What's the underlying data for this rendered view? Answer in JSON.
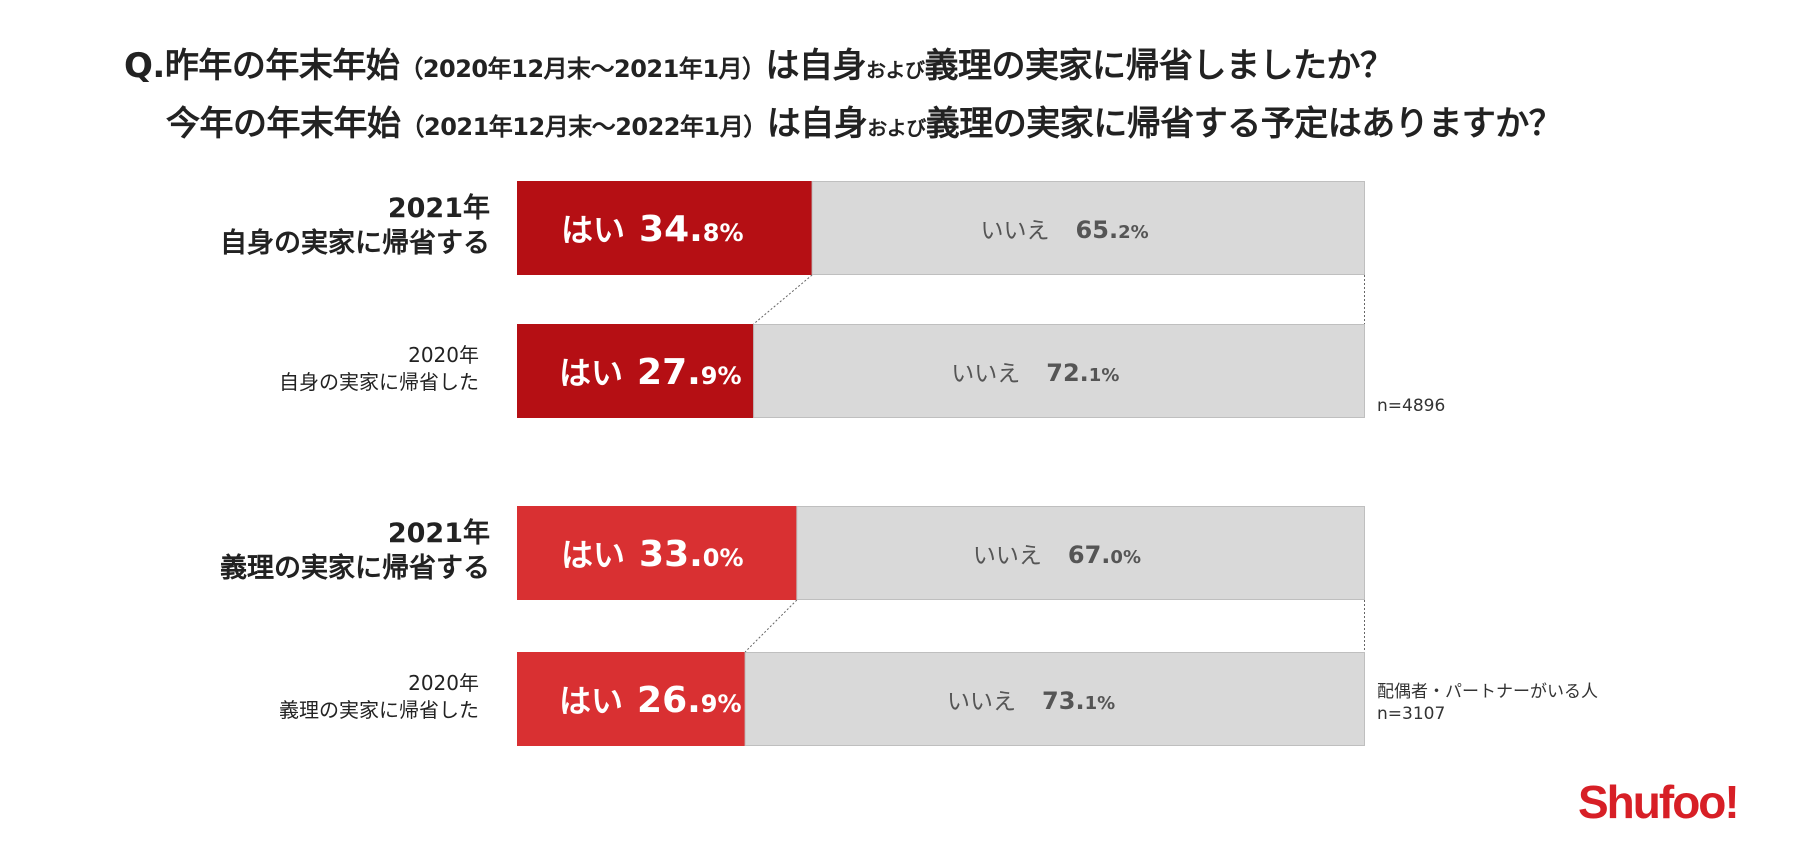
{
  "title": {
    "line1": {
      "q": "Q.昨年の年末年始",
      "period": "（2020年12月末～2021年1月）",
      "mid": "は自身",
      "small": "および",
      "rest": "義理の実家に帰省しましたか？"
    },
    "line2": {
      "q": "今年の年末年始",
      "period": "（2021年12月末～2022年1月）",
      "mid": "は自身",
      "small": "および",
      "rest": "義理の実家に帰省する予定はありますか？"
    }
  },
  "colors": {
    "own": "#b50f14",
    "inlaw": "#d93032",
    "no": "#d9d9d9",
    "no_border": "#bfbfbf"
  },
  "chart_data": {
    "type": "bar",
    "orientation": "horizontal",
    "stacked": true,
    "percent": true,
    "xlim": [
      0,
      100
    ],
    "groups": [
      {
        "note": [
          "n=4896"
        ],
        "rows": [
          {
            "year": "2021年",
            "label": "自身の実家に帰省する",
            "yes_label": "はい",
            "no_label": "いいえ",
            "yes": 34.8,
            "no": 65.2,
            "color_key": "own",
            "style": "big"
          },
          {
            "year": "2020年",
            "label": "自身の実家に帰省した",
            "yes_label": "はい",
            "no_label": "いいえ",
            "yes": 27.9,
            "no": 72.1,
            "color_key": "own",
            "style": "small"
          }
        ]
      },
      {
        "note": [
          "配偶者・パートナーがいる人",
          "n=3107"
        ],
        "rows": [
          {
            "year": "2021年",
            "label": "義理の実家に帰省する",
            "yes_label": "はい",
            "no_label": "いいえ",
            "yes": 33.0,
            "no": 67.0,
            "color_key": "inlaw",
            "style": "big"
          },
          {
            "year": "2020年",
            "label": "義理の実家に帰省した",
            "yes_label": "はい",
            "no_label": "いいえ",
            "yes": 26.9,
            "no": 73.1,
            "color_key": "inlaw",
            "style": "small"
          }
        ]
      }
    ]
  },
  "logo": {
    "text": "Shufoo!"
  }
}
